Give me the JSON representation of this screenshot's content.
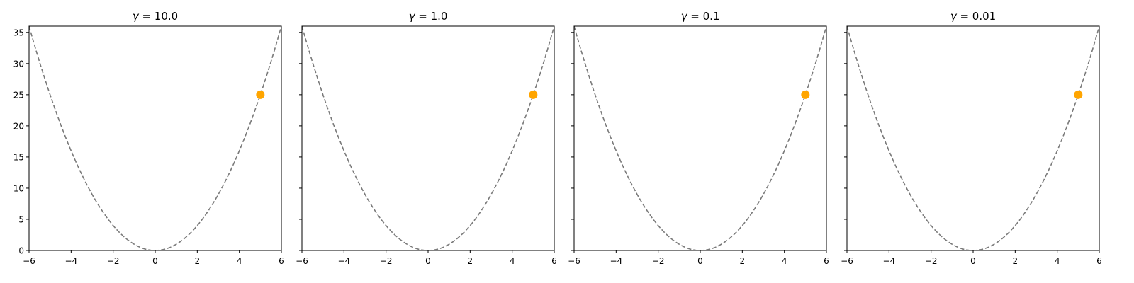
{
  "chart_data": [
    {
      "type": "line",
      "title_symbol": "γ",
      "title_value": "10.0",
      "xlim": [
        -6,
        6
      ],
      "ylim": [
        0,
        36
      ],
      "xticks": [
        -6,
        -4,
        -2,
        0,
        2,
        4,
        6
      ],
      "yticks": [
        0,
        5,
        10,
        15,
        20,
        25,
        30,
        35
      ],
      "show_yticklabels": true,
      "series": [
        {
          "kind": "curve",
          "function": "y = x^2",
          "x": [
            -6,
            -5,
            -4,
            -3,
            -2,
            -1,
            0,
            1,
            2,
            3,
            4,
            5,
            6
          ],
          "y": [
            36,
            25,
            16,
            9,
            4,
            1,
            0,
            1,
            4,
            9,
            16,
            25,
            36
          ],
          "color": "#7a7a7a",
          "style": "dashed"
        },
        {
          "kind": "point",
          "x": [
            5
          ],
          "y": [
            25
          ],
          "color": "#ffa500"
        }
      ]
    },
    {
      "type": "line",
      "title_symbol": "γ",
      "title_value": "1.0",
      "xlim": [
        -6,
        6
      ],
      "ylim": [
        0,
        36
      ],
      "xticks": [
        -6,
        -4,
        -2,
        0,
        2,
        4,
        6
      ],
      "yticks": [
        0,
        5,
        10,
        15,
        20,
        25,
        30,
        35
      ],
      "show_yticklabels": false,
      "series": [
        {
          "kind": "curve",
          "function": "y = x^2",
          "x": [
            -6,
            -5,
            -4,
            -3,
            -2,
            -1,
            0,
            1,
            2,
            3,
            4,
            5,
            6
          ],
          "y": [
            36,
            25,
            16,
            9,
            4,
            1,
            0,
            1,
            4,
            9,
            16,
            25,
            36
          ],
          "color": "#7a7a7a",
          "style": "dashed"
        },
        {
          "kind": "point",
          "x": [
            5
          ],
          "y": [
            25
          ],
          "color": "#ffa500"
        }
      ]
    },
    {
      "type": "line",
      "title_symbol": "γ",
      "title_value": "0.1",
      "xlim": [
        -6,
        6
      ],
      "ylim": [
        0,
        36
      ],
      "xticks": [
        -6,
        -4,
        -2,
        0,
        2,
        4,
        6
      ],
      "yticks": [
        0,
        5,
        10,
        15,
        20,
        25,
        30,
        35
      ],
      "show_yticklabels": false,
      "series": [
        {
          "kind": "curve",
          "function": "y = x^2",
          "x": [
            -6,
            -5,
            -4,
            -3,
            -2,
            -1,
            0,
            1,
            2,
            3,
            4,
            5,
            6
          ],
          "y": [
            36,
            25,
            16,
            9,
            4,
            1,
            0,
            1,
            4,
            9,
            16,
            25,
            36
          ],
          "color": "#7a7a7a",
          "style": "dashed"
        },
        {
          "kind": "point",
          "x": [
            5
          ],
          "y": [
            25
          ],
          "color": "#ffa500"
        }
      ]
    },
    {
      "type": "line",
      "title_symbol": "γ",
      "title_value": "0.01",
      "xlim": [
        -6,
        6
      ],
      "ylim": [
        0,
        36
      ],
      "xticks": [
        -6,
        -4,
        -2,
        0,
        2,
        4,
        6
      ],
      "yticks": [
        0,
        5,
        10,
        15,
        20,
        25,
        30,
        35
      ],
      "show_yticklabels": false,
      "series": [
        {
          "kind": "curve",
          "function": "y = x^2",
          "x": [
            -6,
            -5,
            -4,
            -3,
            -2,
            -1,
            0,
            1,
            2,
            3,
            4,
            5,
            6
          ],
          "y": [
            36,
            25,
            16,
            9,
            4,
            1,
            0,
            1,
            4,
            9,
            16,
            25,
            36
          ],
          "color": "#7a7a7a",
          "style": "dashed"
        },
        {
          "kind": "point",
          "x": [
            5
          ],
          "y": [
            25
          ],
          "color": "#ffa500"
        }
      ]
    }
  ]
}
